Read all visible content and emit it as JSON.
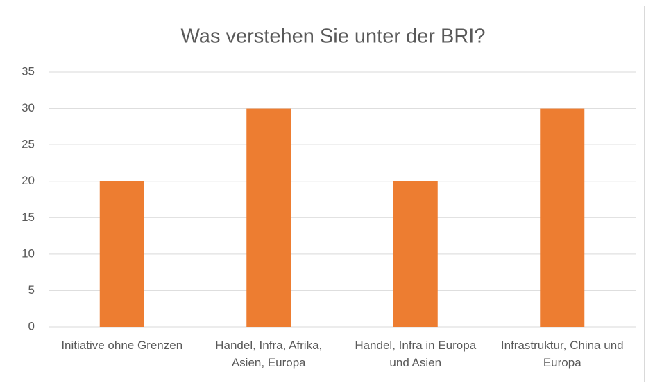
{
  "chart_data": {
    "type": "bar",
    "title": "Was verstehen Sie unter der BRI?",
    "categories": [
      "Initiative ohne Grenzen",
      "Handel, Infra, Afrika, Asien, Europa",
      "Handel, Infra in Europa und Asien",
      "Infrastruktur, China und Europa"
    ],
    "values": [
      20,
      30,
      20,
      30
    ],
    "color": "#ed7d31",
    "ylim": [
      0,
      35
    ],
    "yticks": [
      0,
      5,
      10,
      15,
      20,
      25,
      30,
      35
    ],
    "grid": true
  }
}
